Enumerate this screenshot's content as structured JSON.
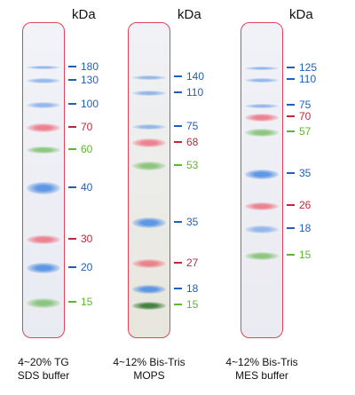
{
  "unit_label": "kDa",
  "colors": {
    "blue": "#1f5fb8",
    "red": "#c0283a",
    "green": "#5fb52e",
    "lane_border": "#e0445a"
  },
  "lanes": [
    {
      "caption_line1": "4~20% TG",
      "caption_line2": "SDS buffer",
      "markers": [
        {
          "label": "180",
          "color": "blue"
        },
        {
          "label": "130",
          "color": "blue"
        },
        {
          "label": "100",
          "color": "blue"
        },
        {
          "label": "70",
          "color": "red"
        },
        {
          "label": "60",
          "color": "green"
        },
        {
          "label": "40",
          "color": "blue"
        },
        {
          "label": "30",
          "color": "red"
        },
        {
          "label": "20",
          "color": "blue"
        },
        {
          "label": "15",
          "color": "green"
        }
      ]
    },
    {
      "caption_line1": "4~12% Bis-Tris",
      "caption_line2": "MOPS",
      "markers": [
        {
          "label": "140",
          "color": "blue"
        },
        {
          "label": "110",
          "color": "blue"
        },
        {
          "label": "75",
          "color": "blue"
        },
        {
          "label": "68",
          "color": "red"
        },
        {
          "label": "53",
          "color": "green"
        },
        {
          "label": "35",
          "color": "blue"
        },
        {
          "label": "27",
          "color": "red"
        },
        {
          "label": "18",
          "color": "blue"
        },
        {
          "label": "15",
          "color": "green"
        }
      ]
    },
    {
      "caption_line1": "4~12% Bis-Tris",
      "caption_line2": "MES buffer",
      "markers": [
        {
          "label": "125",
          "color": "blue"
        },
        {
          "label": "110",
          "color": "blue"
        },
        {
          "label": "75",
          "color": "blue"
        },
        {
          "label": "70",
          "color": "red"
        },
        {
          "label": "57",
          "color": "green"
        },
        {
          "label": "35",
          "color": "blue"
        },
        {
          "label": "26",
          "color": "red"
        },
        {
          "label": "18",
          "color": "blue"
        },
        {
          "label": "15",
          "color": "green"
        }
      ]
    }
  ]
}
